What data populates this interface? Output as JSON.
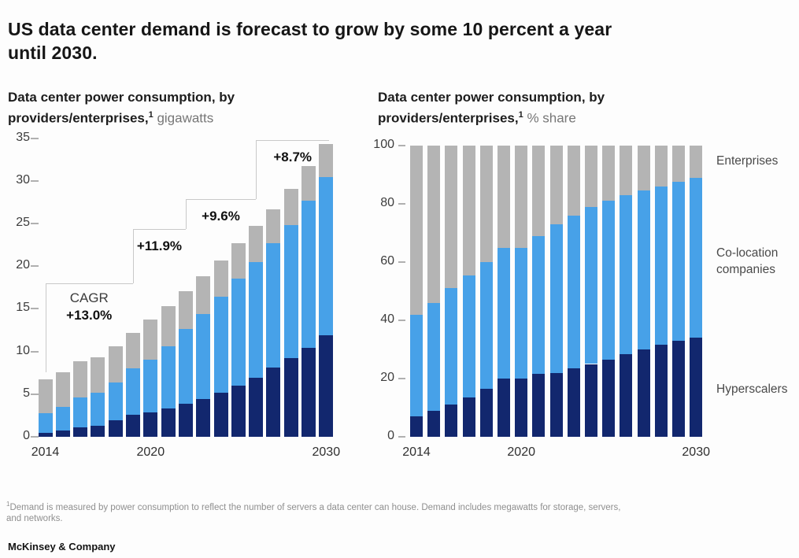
{
  "header": {
    "title_line1": "US data center demand is forecast to grow by some 10 percent a year",
    "title_line2": "until 2030."
  },
  "footnote": {
    "marker": "1",
    "line1": "Demand is measured by power consumption to reflect the number of servers a data center can house. Demand includes megawatts for storage, servers,",
    "line2": "and networks."
  },
  "footer": {
    "logo": "McKinsey & Company"
  },
  "colors": {
    "hyperscalers": "#12276e",
    "colocation": "#47a1e8",
    "enterprises": "#b4b4b4",
    "bracket_line": "#c9c9c9"
  },
  "chart_data": [
    {
      "id": "left",
      "type": "stacked-bar",
      "subtitle_line1": "Data center power consumption, by",
      "subtitle_line2": "providers/enterprises,",
      "footnote_marker": "1",
      "unit": "gigawatts",
      "categories": [
        "2014",
        "2015",
        "2016",
        "2017",
        "2018",
        "2019",
        "2020",
        "2021",
        "2022",
        "2023",
        "2024",
        "2025",
        "2026",
        "2027",
        "2028",
        "2029",
        "2030"
      ],
      "xtick_labels": [
        {
          "label": "2014",
          "index": 0
        },
        {
          "label": "2020",
          "index": 6
        },
        {
          "label": "2030",
          "index": 16
        }
      ],
      "yticks": [
        0,
        5,
        10,
        15,
        20,
        25,
        30,
        35
      ],
      "ylim": [
        0,
        35
      ],
      "grid": false,
      "series": [
        {
          "name": "Hyperscalers",
          "color_key": "hyperscalers",
          "values": [
            0.5,
            0.7,
            1.1,
            1.3,
            1.9,
            2.6,
            2.9,
            3.3,
            3.9,
            4.4,
            5.2,
            6.0,
            6.9,
            8.1,
            9.2,
            10.4,
            11.9
          ]
        },
        {
          "name": "Co-location companies",
          "color_key": "colocation",
          "values": [
            2.3,
            2.8,
            3.5,
            3.9,
            4.5,
            5.4,
            6.1,
            7.3,
            8.7,
            10.0,
            11.2,
            12.5,
            13.6,
            14.6,
            15.6,
            17.3,
            18.5
          ]
        },
        {
          "name": "Enterprises",
          "color_key": "enterprises",
          "values": [
            3.9,
            4.1,
            4.3,
            4.1,
            4.2,
            4.2,
            4.7,
            4.7,
            4.5,
            4.4,
            4.3,
            4.2,
            4.2,
            4.0,
            4.3,
            4.0,
            3.9
          ]
        }
      ],
      "annotations": {
        "cagr_title": "CAGR",
        "segments": [
          {
            "label": "+13.0%",
            "from_index": 0,
            "to_index": 5,
            "level": 18.0,
            "show_title": true
          },
          {
            "label": "+11.9%",
            "from_index": 5,
            "to_index": 8,
            "level": 24.4
          },
          {
            "label": "+9.6%",
            "from_index": 8,
            "to_index": 12,
            "level": 27.9
          },
          {
            "label": "+8.7%",
            "from_index": 12,
            "to_index": 16,
            "level": 34.8
          }
        ]
      }
    },
    {
      "id": "right",
      "type": "stacked-bar",
      "subtitle_line1": "Data center power consumption, by",
      "subtitle_line2": "providers/enterprises,",
      "footnote_marker": "1",
      "unit": "% share",
      "categories": [
        "2014",
        "2015",
        "2016",
        "2017",
        "2018",
        "2019",
        "2020",
        "2021",
        "2022",
        "2023",
        "2024",
        "2025",
        "2026",
        "2027",
        "2028",
        "2029",
        "2030"
      ],
      "xtick_labels": [
        {
          "label": "2014",
          "index": 0
        },
        {
          "label": "2020",
          "index": 6
        },
        {
          "label": "2030",
          "index": 16
        }
      ],
      "yticks": [
        0,
        20,
        40,
        60,
        80,
        100
      ],
      "ylim": [
        0,
        100
      ],
      "grid": false,
      "series": [
        {
          "name": "Hyperscalers",
          "color_key": "hyperscalers",
          "values": [
            7,
            9,
            11,
            13.5,
            16.5,
            20,
            20,
            21.5,
            22,
            23.5,
            25,
            26.5,
            28.5,
            30,
            31.5,
            33,
            34
          ]
        },
        {
          "name": "Co-location companies",
          "color_key": "colocation",
          "values": [
            35,
            37,
            40,
            42,
            43.5,
            45,
            45,
            47.5,
            51,
            52.5,
            54,
            54.5,
            54.5,
            54.5,
            54.5,
            54.5,
            55
          ]
        },
        {
          "name": "Enterprises",
          "color_key": "enterprises",
          "values": [
            58,
            54,
            49,
            44.5,
            40,
            35,
            35,
            31,
            27,
            24,
            21,
            19,
            17,
            15.5,
            14,
            12.5,
            11
          ]
        }
      ],
      "side_labels": [
        "Enterprises",
        "Co-location companies",
        "Hyperscalers"
      ]
    }
  ]
}
